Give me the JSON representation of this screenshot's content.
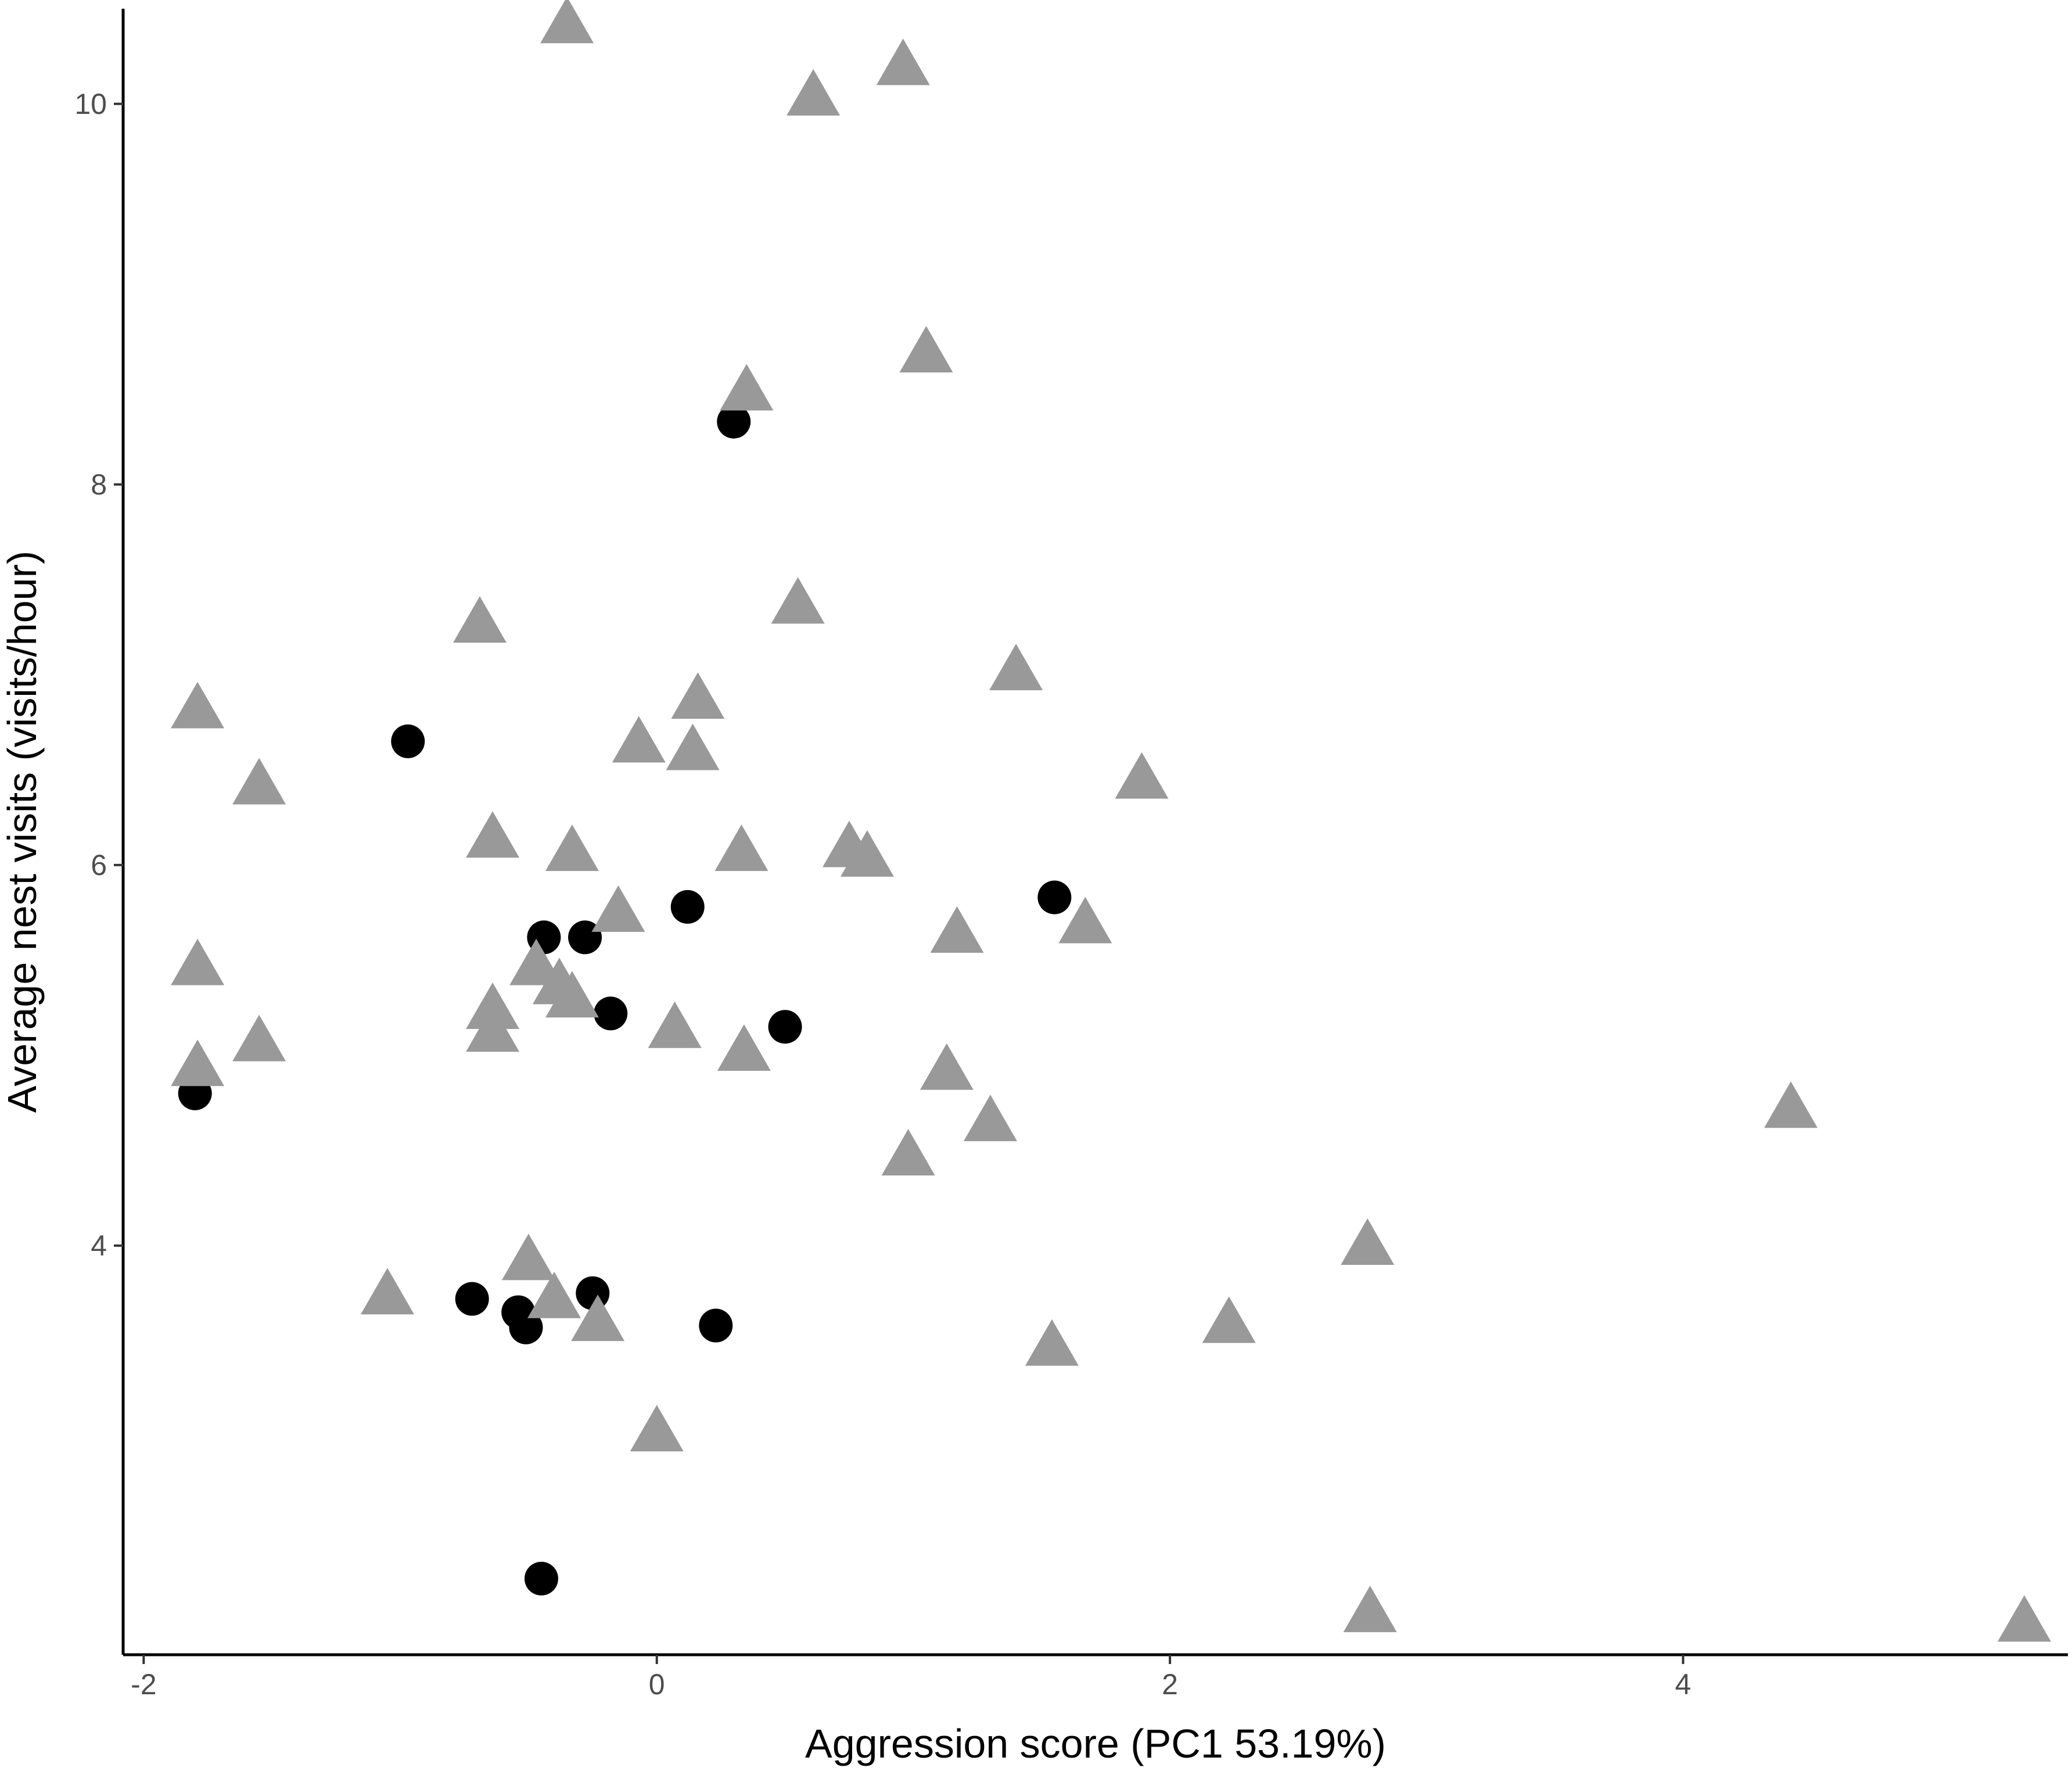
{
  "chart_data": {
    "type": "scatter",
    "title": "",
    "xlabel": "Aggression score (PC1 53.19%)",
    "ylabel": "Average nest visits (visits/hour)",
    "xlim": [
      -2.08,
      5.5
    ],
    "ylim": [
      1.85,
      10.5
    ],
    "xticks": [
      -2,
      0,
      2,
      4
    ],
    "yticks": [
      4,
      6,
      8,
      10
    ],
    "xtick_labels": [
      "-2",
      "0",
      "2",
      "4"
    ],
    "ytick_labels": [
      "4",
      "6",
      "8",
      "10"
    ],
    "grid": false,
    "legend": "none",
    "series": [
      {
        "marker": "circle",
        "color": "#000000",
        "points": [
          [
            -1.8,
            4.8
          ],
          [
            -0.97,
            6.65
          ],
          [
            -0.72,
            3.72
          ],
          [
            -0.54,
            3.65
          ],
          [
            -0.51,
            3.57
          ],
          [
            -0.45,
            2.25
          ],
          [
            -0.44,
            5.62
          ],
          [
            -0.28,
            5.62
          ],
          [
            -0.25,
            3.75
          ],
          [
            -0.18,
            5.22
          ],
          [
            0.12,
            5.78
          ],
          [
            0.23,
            3.58
          ],
          [
            0.3,
            8.33
          ],
          [
            0.5,
            5.15
          ],
          [
            1.55,
            5.83
          ]
        ]
      },
      {
        "marker": "triangle",
        "color": "#999999",
        "points": [
          [
            -1.79,
            6.8
          ],
          [
            -1.79,
            5.45
          ],
          [
            -1.79,
            4.92
          ],
          [
            -1.55,
            6.4
          ],
          [
            -1.55,
            5.05
          ],
          [
            -1.05,
            3.72
          ],
          [
            -0.69,
            7.25
          ],
          [
            -0.64,
            6.12
          ],
          [
            -0.64,
            5.22
          ],
          [
            -0.64,
            5.1
          ],
          [
            -0.5,
            3.9
          ],
          [
            -0.47,
            5.45
          ],
          [
            -0.4,
            3.7
          ],
          [
            -0.38,
            5.35
          ],
          [
            -0.35,
            10.4
          ],
          [
            -0.33,
            6.05
          ],
          [
            -0.33,
            5.28
          ],
          [
            -0.23,
            3.58
          ],
          [
            -0.15,
            5.73
          ],
          [
            -0.07,
            6.62
          ],
          [
            0.0,
            3.0
          ],
          [
            0.07,
            5.12
          ],
          [
            0.14,
            6.58
          ],
          [
            0.16,
            6.85
          ],
          [
            0.33,
            6.05
          ],
          [
            0.34,
            5.0
          ],
          [
            0.35,
            8.47
          ],
          [
            0.55,
            7.35
          ],
          [
            0.61,
            10.02
          ],
          [
            0.75,
            6.07
          ],
          [
            0.82,
            6.02
          ],
          [
            0.96,
            10.18
          ],
          [
            0.98,
            4.45
          ],
          [
            1.05,
            8.67
          ],
          [
            1.13,
            4.9
          ],
          [
            1.17,
            5.62
          ],
          [
            1.3,
            4.63
          ],
          [
            1.4,
            7.0
          ],
          [
            1.54,
            3.45
          ],
          [
            1.67,
            5.67
          ],
          [
            1.89,
            6.43
          ],
          [
            2.23,
            3.57
          ],
          [
            2.77,
            3.98
          ],
          [
            2.78,
            2.05
          ],
          [
            4.42,
            4.7
          ],
          [
            5.33,
            2.0
          ]
        ]
      }
    ]
  }
}
